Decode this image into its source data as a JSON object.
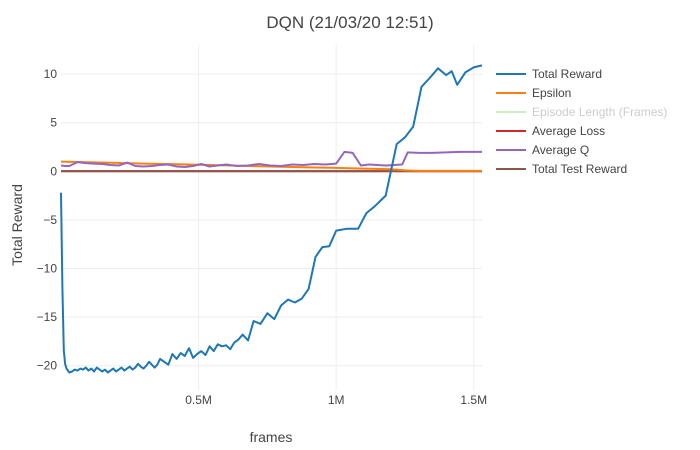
{
  "chart_data": {
    "type": "line",
    "title": "DQN (21/03/20 12:51)",
    "xlabel": "frames",
    "ylabel": "Total Reward",
    "xlim": [
      0,
      1530000
    ],
    "ylim": [
      -22.5,
      13
    ],
    "x_ticks": [
      500000,
      1000000,
      1500000
    ],
    "x_tick_labels": [
      "0.5M",
      "1M",
      "1.5M"
    ],
    "y_ticks": [
      -20,
      -15,
      -10,
      -5,
      0,
      5,
      10
    ],
    "y_tick_labels": [
      "−20",
      "−15",
      "−10",
      "−5",
      "0",
      "5",
      "10"
    ],
    "grid": true,
    "legend_position": "right",
    "series": [
      {
        "name": "Total Reward",
        "color": "#1f77b4",
        "visible": true,
        "x": [
          0,
          5000,
          10000,
          15000,
          20000,
          30000,
          40000,
          50000,
          60000,
          70000,
          80000,
          90000,
          100000,
          110000,
          120000,
          130000,
          140000,
          150000,
          160000,
          170000,
          180000,
          190000,
          200000,
          210000,
          220000,
          230000,
          240000,
          250000,
          260000,
          270000,
          280000,
          290000,
          300000,
          310000,
          320000,
          330000,
          340000,
          350000,
          360000,
          375000,
          390000,
          405000,
          420000,
          435000,
          450000,
          465000,
          480000,
          495000,
          510000,
          525000,
          540000,
          555000,
          570000,
          585000,
          600000,
          615000,
          630000,
          645000,
          660000,
          680000,
          700000,
          725000,
          750000,
          775000,
          800000,
          825000,
          850000,
          875000,
          900000,
          925000,
          950000,
          975000,
          1000000,
          1040000,
          1080000,
          1110000,
          1140000,
          1180000,
          1220000,
          1250000,
          1280000,
          1310000,
          1340000,
          1370000,
          1400000,
          1420000,
          1440000,
          1470000,
          1500000,
          1530000
        ],
        "y": [
          -2.2,
          -12,
          -18.4,
          -19.8,
          -20.3,
          -20.7,
          -20.6,
          -20.4,
          -20.5,
          -20.3,
          -20.4,
          -20.2,
          -20.5,
          -20.3,
          -20.6,
          -20.2,
          -20.4,
          -20.6,
          -20.4,
          -20.7,
          -20.5,
          -20.3,
          -20.6,
          -20.4,
          -20.2,
          -20.5,
          -20.3,
          -20.1,
          -20.4,
          -20.2,
          -19.8,
          -20.1,
          -20.3,
          -20.0,
          -19.6,
          -19.9,
          -20.2,
          -19.9,
          -19.3,
          -19.6,
          -19.9,
          -18.8,
          -19.3,
          -18.7,
          -19.0,
          -18.2,
          -19.2,
          -18.8,
          -18.5,
          -18.9,
          -18.0,
          -18.5,
          -17.8,
          -18.0,
          -17.9,
          -18.3,
          -17.6,
          -17.3,
          -16.8,
          -17.4,
          -15.4,
          -15.7,
          -14.6,
          -15.2,
          -13.8,
          -13.2,
          -13.5,
          -13.1,
          -12.1,
          -8.8,
          -7.8,
          -7.7,
          -6.1,
          -5.9,
          -5.9,
          -4.3,
          -3.6,
          -2.5,
          2.8,
          3.5,
          4.6,
          8.7,
          9.6,
          10.6,
          9.9,
          10.3,
          8.9,
          10.2,
          10.7,
          10.9
        ]
      },
      {
        "name": "Epsilon",
        "color": "#ff7f0e",
        "visible": true,
        "x": [
          0,
          100000,
          200000,
          300000,
          400000,
          500000,
          600000,
          700000,
          800000,
          900000,
          1000000,
          1100000,
          1200000,
          1250000,
          1300000,
          1400000,
          1500000,
          1530000
        ],
        "y": [
          1.0,
          0.93,
          0.87,
          0.8,
          0.74,
          0.67,
          0.61,
          0.54,
          0.48,
          0.41,
          0.35,
          0.28,
          0.22,
          0.1,
          0.05,
          0.05,
          0.05,
          0.05
        ]
      },
      {
        "name": "Episode Length (Frames)",
        "color": "#98df8a",
        "visible": false,
        "x": [],
        "y": []
      },
      {
        "name": "Average Loss",
        "color": "#d62728",
        "visible": true,
        "x": [
          0,
          500000,
          1000000,
          1530000
        ],
        "y": [
          0.02,
          0.02,
          0.02,
          0.02
        ]
      },
      {
        "name": "Average Q",
        "color": "#9467bd",
        "visible": true,
        "x": [
          0,
          15000,
          30000,
          60000,
          90000,
          120000,
          150000,
          180000,
          210000,
          240000,
          270000,
          300000,
          330000,
          360000,
          390000,
          420000,
          450000,
          480000,
          510000,
          540000,
          570000,
          600000,
          640000,
          680000,
          720000,
          760000,
          800000,
          840000,
          880000,
          920000,
          960000,
          1000000,
          1030000,
          1060000,
          1090000,
          1120000,
          1150000,
          1180000,
          1210000,
          1240000,
          1260000,
          1300000,
          1350000,
          1400000,
          1450000,
          1500000,
          1530000
        ],
        "y": [
          0.6,
          0.55,
          0.55,
          0.95,
          0.85,
          0.8,
          0.75,
          0.65,
          0.6,
          0.9,
          0.55,
          0.5,
          0.55,
          0.65,
          0.7,
          0.5,
          0.45,
          0.55,
          0.75,
          0.5,
          0.6,
          0.7,
          0.55,
          0.6,
          0.75,
          0.6,
          0.55,
          0.7,
          0.65,
          0.75,
          0.7,
          0.8,
          2.0,
          1.9,
          0.6,
          0.7,
          0.65,
          0.6,
          0.65,
          0.7,
          1.95,
          1.9,
          1.9,
          1.95,
          2.0,
          2.0,
          2.0
        ]
      },
      {
        "name": "Total Test Reward",
        "color": "#8c564b",
        "visible": true,
        "x": [
          0,
          500000,
          1000000,
          1530000
        ],
        "y": [
          0.0,
          0.0,
          0.0,
          0.0
        ]
      }
    ]
  }
}
